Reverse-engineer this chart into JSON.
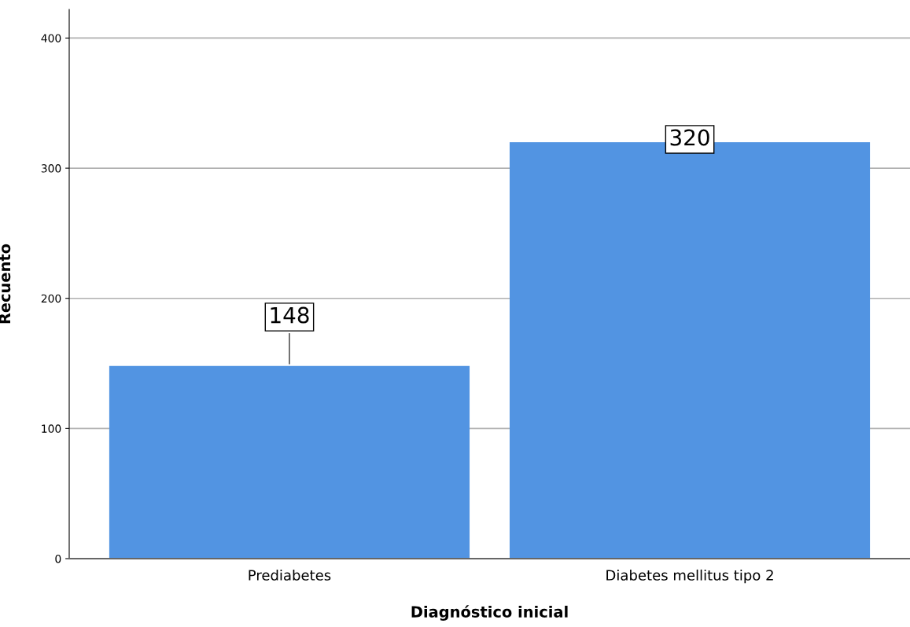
{
  "chart_data": {
    "type": "bar",
    "xlabel": "Diagnóstico inicial",
    "ylabel": "Recuento",
    "categories": [
      "Prediabetes",
      "Diabetes mellitus tipo 2"
    ],
    "values": [
      148,
      320
    ],
    "color": "#5294e2",
    "ylim": [
      0,
      422
    ],
    "yticks": [
      0,
      100,
      200,
      300,
      400
    ],
    "grid": "y",
    "data_labels": true
  }
}
